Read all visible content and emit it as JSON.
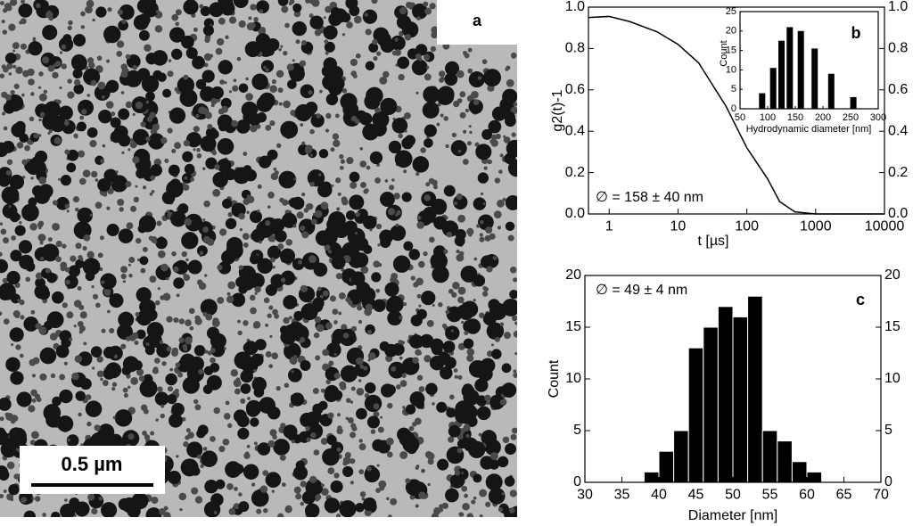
{
  "panel_a": {
    "label": "a",
    "scale_bar": "0.5 µm"
  },
  "chart_data": [
    {
      "type": "line",
      "panel_label": "b",
      "annotation": "∅ = 158 ± 40 nm",
      "x_label": "t [µs]",
      "y_label": "g2(t)-1",
      "xscale": "log",
      "mirror_y": true,
      "x": [
        0.5,
        1,
        2,
        5,
        10,
        20,
        50,
        100,
        200,
        300,
        500,
        1000,
        10000
      ],
      "values": [
        0.95,
        0.955,
        0.93,
        0.88,
        0.82,
        0.73,
        0.52,
        0.32,
        0.17,
        0.06,
        0.01,
        0,
        0
      ],
      "color": "#000000",
      "xlim": [
        0.5,
        10000
      ],
      "xticks": [
        1,
        10,
        100,
        1000,
        10000
      ],
      "ylim": [
        0,
        1
      ],
      "yticks": [
        {
          "value": 0,
          "label": "0.0"
        },
        0.2,
        0.4,
        0.6,
        0.8,
        {
          "value": 1,
          "label": "1.0"
        }
      ]
    },
    {
      "type": "bar",
      "x_label": "Hydrodynamic diameter [nm]",
      "y_label": "Count",
      "mirror_y": false,
      "x": [
        90,
        110,
        125,
        140,
        160,
        185,
        215,
        255
      ],
      "values": [
        4,
        10.5,
        17.5,
        21,
        20,
        15.5,
        9,
        3
      ],
      "color": "#000000",
      "xlim": [
        50,
        300
      ],
      "xticks": [
        50,
        100,
        150,
        200,
        250,
        300
      ],
      "ylim": [
        0,
        25
      ],
      "yticks": [
        0,
        5,
        10,
        15,
        20,
        25
      ]
    },
    {
      "type": "histogram",
      "panel_label": "c",
      "annotation": "∅ = 49 ± 4 nm",
      "x_label": "Diameter [nm]",
      "y_label": "Count",
      "mirror_y": true,
      "bins": [
        38,
        40,
        42,
        44,
        46,
        48,
        50,
        52,
        54,
        56,
        58,
        60,
        62
      ],
      "values": [
        1,
        3,
        5,
        13,
        15,
        17,
        16,
        18,
        5,
        4,
        2,
        1
      ],
      "color": "#000000",
      "xlim": [
        30,
        70
      ],
      "xticks": [
        30,
        35,
        40,
        45,
        50,
        55,
        60,
        65,
        70
      ],
      "ylim": [
        0,
        20
      ],
      "yticks": [
        0,
        5,
        10,
        15,
        20
      ]
    }
  ]
}
